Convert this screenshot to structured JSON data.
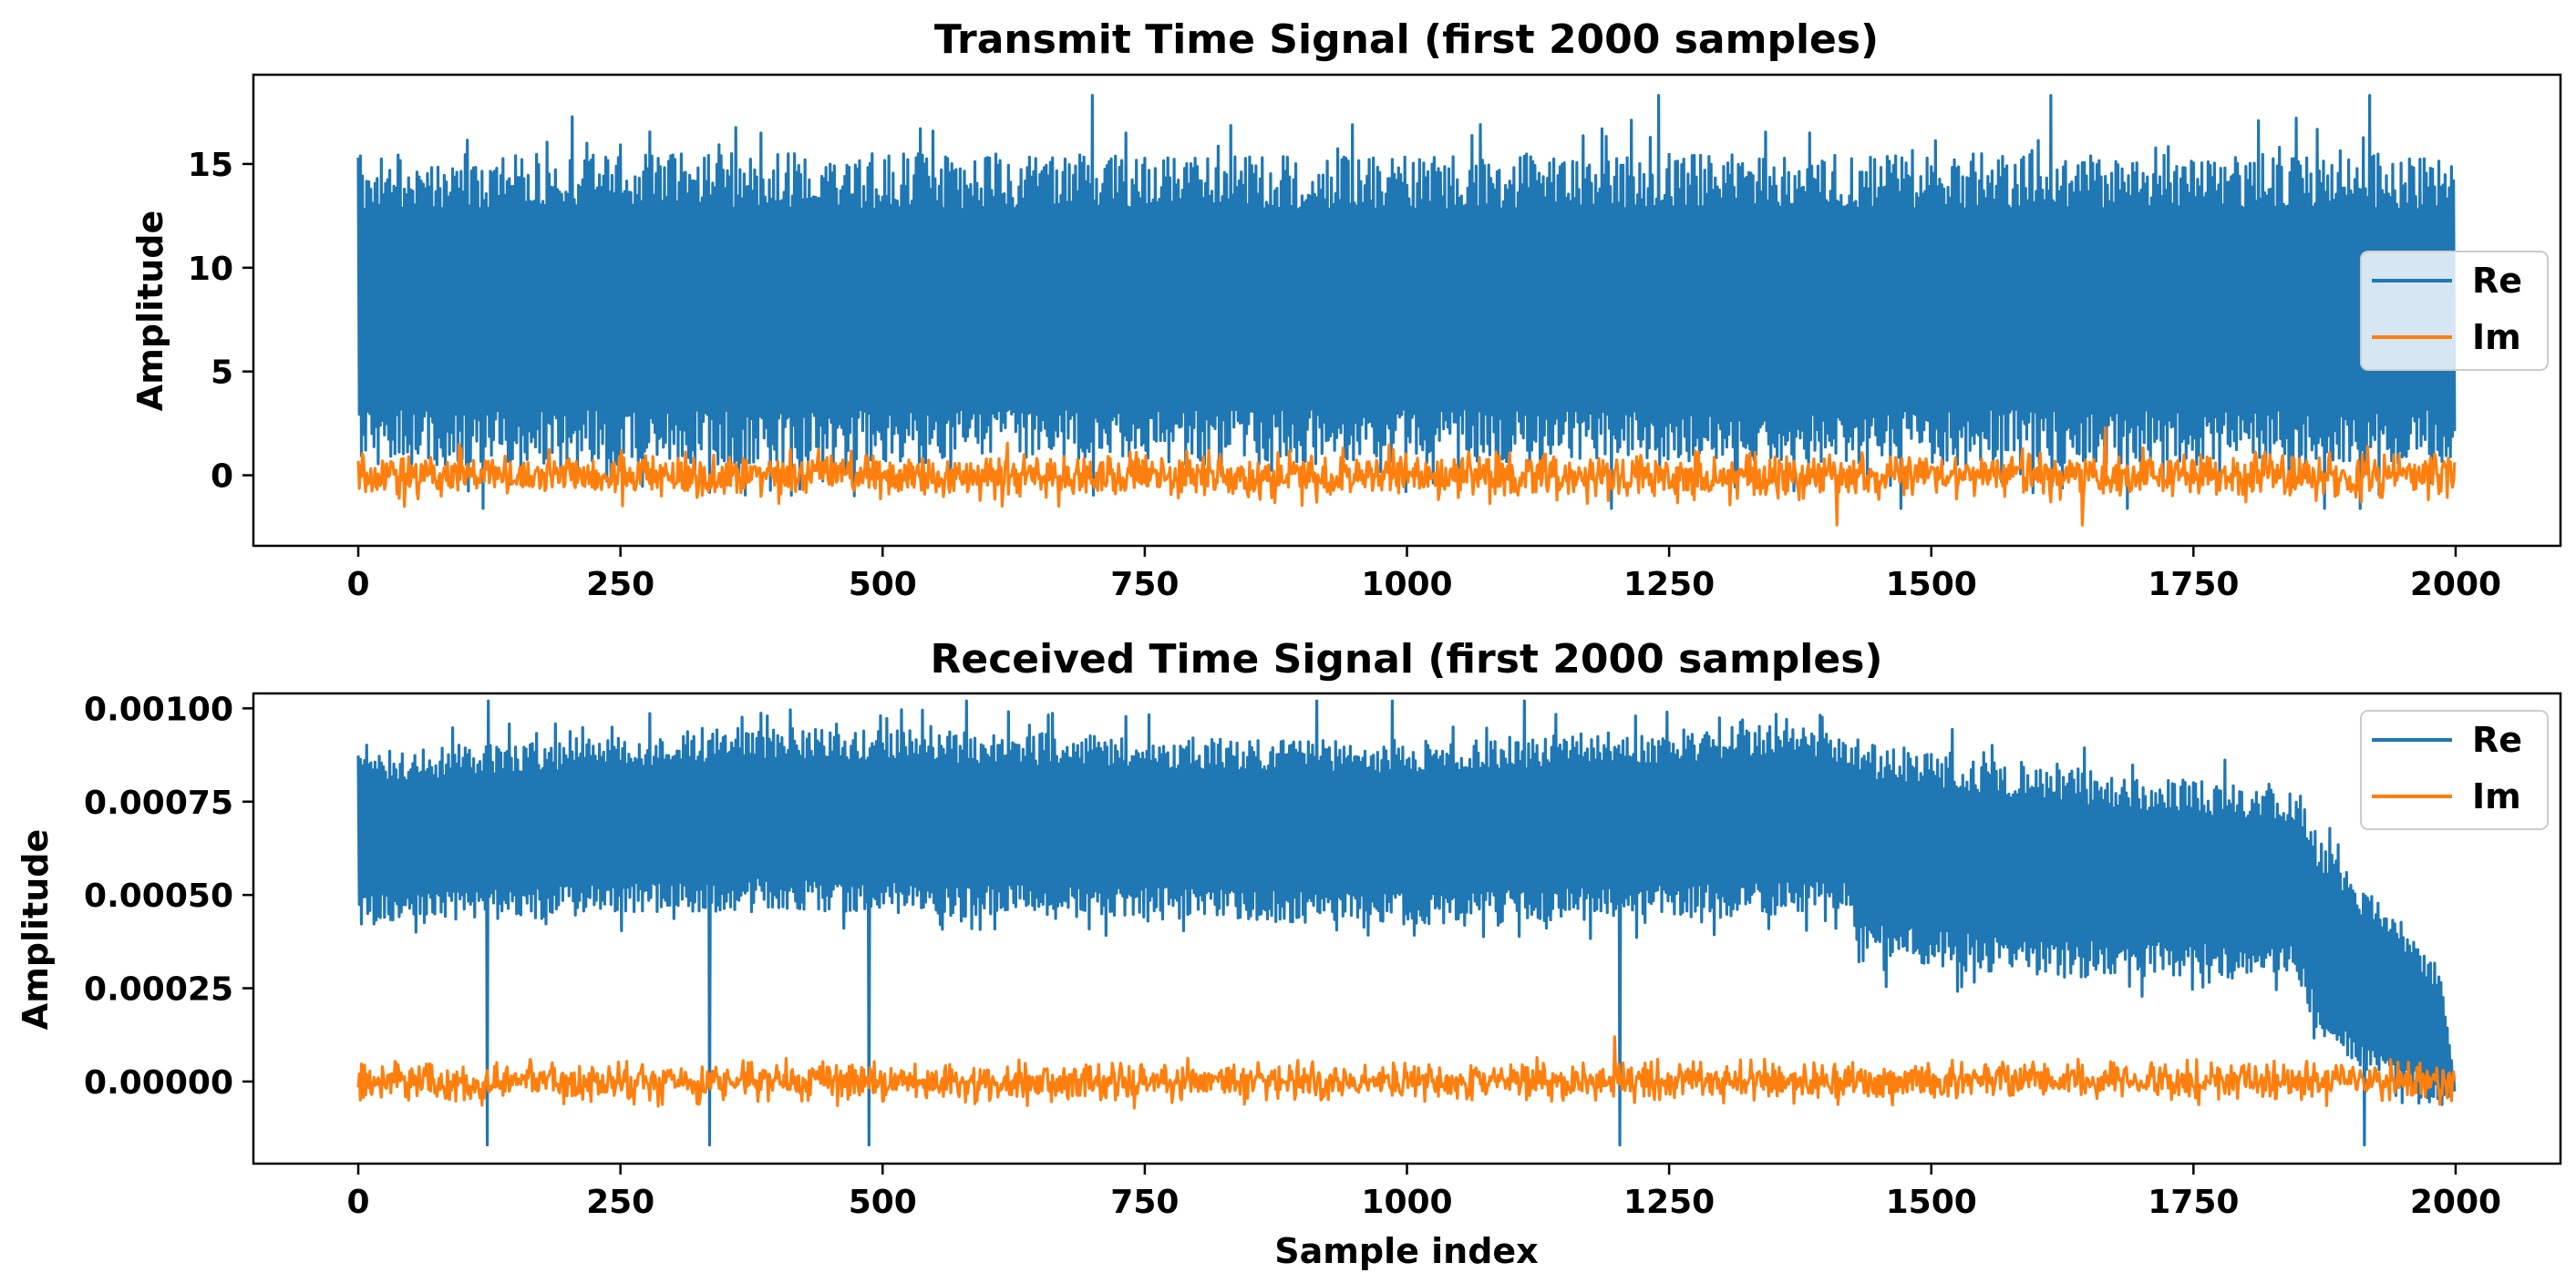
{
  "chart_data": [
    {
      "type": "line",
      "title": "Transmit Time Signal (first 2000 samples)",
      "xlabel": "",
      "ylabel": "Amplitude",
      "xlim": [
        -100,
        2100
      ],
      "ylim": [
        -3.4,
        19.3
      ],
      "xticks": [
        0,
        250,
        500,
        750,
        1000,
        1250,
        1500,
        1750,
        2000
      ],
      "xtick_labels": [
        "0",
        "250",
        "500",
        "750",
        "1000",
        "1250",
        "1500",
        "1750",
        "2000"
      ],
      "yticks": [
        0,
        5,
        10,
        15
      ],
      "ytick_labels": [
        "0",
        "5",
        "10",
        "15"
      ],
      "legend": {
        "placement": "center-right",
        "entries": [
          "Re",
          "Im"
        ]
      },
      "series": [
        {
          "name": "Re",
          "color": "#1f77b4",
          "x_range": [
            0,
            1999
          ],
          "points": 2000,
          "envelope": {
            "upper": [
              [
                0,
                15.5
              ],
              [
                1999,
                15.5
              ]
            ],
            "lower": [
              [
                0,
                0.5
              ],
              [
                1999,
                0.5
              ]
            ]
          },
          "spike_max": 18.3,
          "spike_min": -1.6
        },
        {
          "name": "Im",
          "color": "#ff7f0e",
          "x_range": [
            0,
            1999
          ],
          "points": 2000,
          "mean": 0.0,
          "std": 0.55,
          "spike_max": 2.3,
          "spike_min": -2.4
        }
      ]
    },
    {
      "type": "line",
      "title": "Received Time Signal (first 2000 samples)",
      "xlabel": "Sample index",
      "ylabel": "Amplitude",
      "xlim": [
        -100,
        2100
      ],
      "ylim": [
        -0.00022,
        0.00104
      ],
      "xticks": [
        0,
        250,
        500,
        750,
        1000,
        1250,
        1500,
        1750,
        2000
      ],
      "xtick_labels": [
        "0",
        "250",
        "500",
        "750",
        "1000",
        "1250",
        "1500",
        "1750",
        "2000"
      ],
      "yticks": [
        0,
        0.00025,
        0.0005,
        0.00075,
        0.001
      ],
      "ytick_labels": [
        "0.00000",
        "0.00025",
        "0.00050",
        "0.00075",
        "0.00100"
      ],
      "legend": {
        "placement": "top-right",
        "entries": [
          "Re",
          "Im"
        ]
      },
      "series": [
        {
          "name": "Re",
          "color": "#1f77b4",
          "x_range": [
            0,
            1999
          ],
          "points": 2000,
          "envelope": {
            "upper": [
              [
                0,
                0.00088
              ],
              [
                380,
                0.00095
              ],
              [
                1000,
                0.00091
              ],
              [
                1380,
                0.00096
              ],
              [
                1430,
                0.00092
              ],
              [
                1600,
                0.00085
              ],
              [
                1850,
                0.00078
              ],
              [
                1870,
                0.00065
              ],
              [
                1985,
                0.0003
              ],
              [
                1999,
                0.0
              ]
            ],
            "lower": [
              [
                0,
                0.00042
              ],
              [
                380,
                0.00046
              ],
              [
                1000,
                0.00042
              ],
              [
                1420,
                0.00045
              ],
              [
                1430,
                0.00032
              ],
              [
                1600,
                0.00028
              ],
              [
                1850,
                0.00028
              ],
              [
                1870,
                0.0001
              ],
              [
                1985,
                -8e-05
              ],
              [
                1999,
                -3e-05
              ]
            ]
          },
          "spike_max": 0.00102,
          "spike_min": -0.00017
        },
        {
          "name": "Im",
          "color": "#ff7f0e",
          "x_range": [
            0,
            1999
          ],
          "points": 2000,
          "mean": 0.0,
          "std": 2.5e-05,
          "spike_max": 0.00012,
          "spike_min": -0.00012
        }
      ]
    }
  ]
}
